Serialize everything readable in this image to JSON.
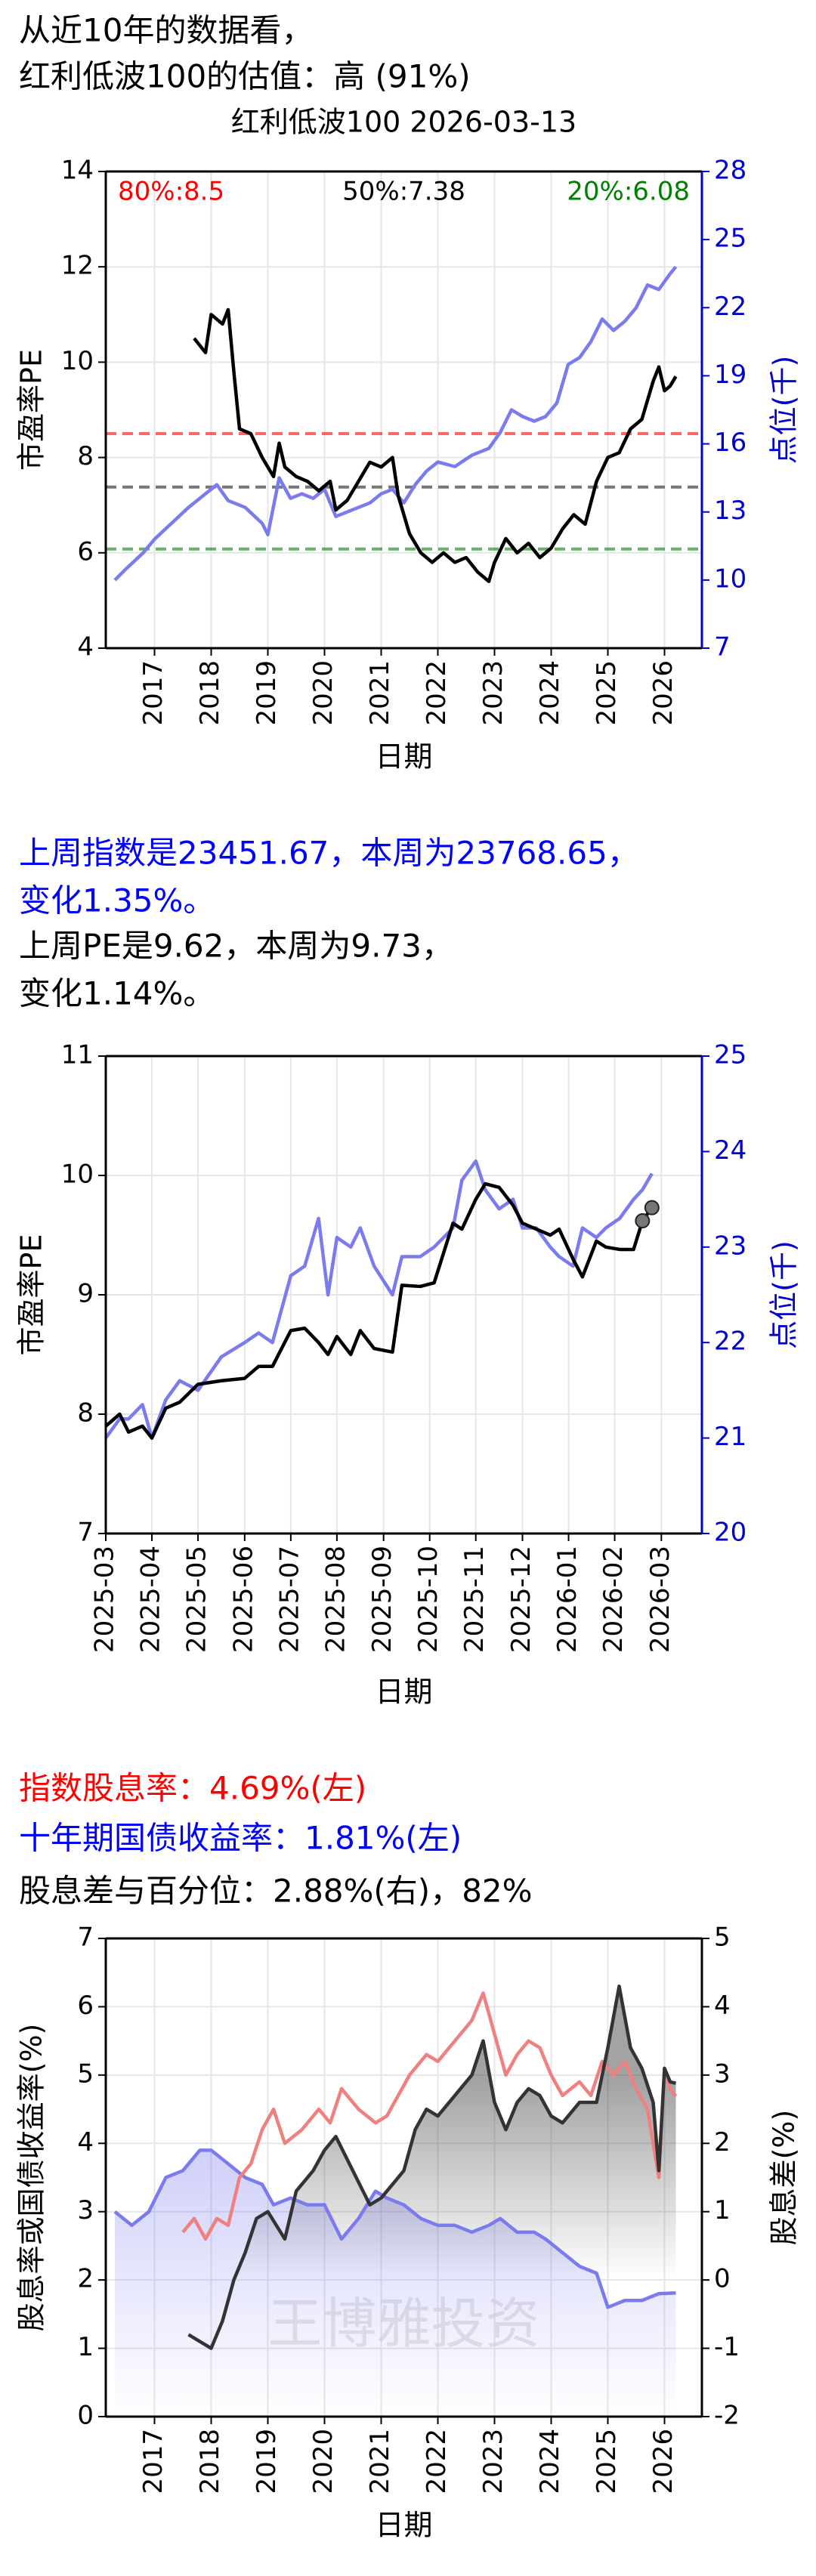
{
  "header": {
    "lines": [
      "从近10年的数据看，",
      "红利低波100的估值：高 (91%)"
    ]
  },
  "paragraphs": [
    {
      "text": "上周指数是23451.67，本周为23768.65，",
      "color": "#0000ff"
    },
    {
      "text": "变化1.35%。",
      "color": "#0000ff"
    },
    {
      "text": "上周PE是9.62，本周为9.73，",
      "color": "#000000"
    },
    {
      "text": "变化1.14%。",
      "color": "#000000"
    },
    {
      "text": "指数股息率：4.69%(左)",
      "color": "#ff0000"
    },
    {
      "text": "十年期国债收益率：1.81%(左)",
      "color": "#0000ff"
    },
    {
      "text": "股息差与百分位：2.88%(右)，82%",
      "color": "#000000"
    }
  ],
  "chart_data": [
    {
      "type": "line",
      "title": "红利低波100 2026-03-13",
      "xlabel": "日期",
      "ylabel": "市盈率PE",
      "y2label": "点位(千)",
      "y2color": "#0000cc",
      "grid": true,
      "xlim": [
        2016.14,
        2026.66
      ],
      "xticks": [
        2017,
        2018,
        2019,
        2020,
        2021,
        2022,
        2023,
        2024,
        2025,
        2026
      ],
      "ylim": [
        4,
        14
      ],
      "yticks": [
        4,
        6,
        8,
        10,
        12,
        14
      ],
      "y2lim": [
        7,
        28
      ],
      "y2ticks": [
        7,
        10,
        13,
        16,
        19,
        22,
        25,
        28
      ],
      "annotations": [
        {
          "text": "80%:8.5",
          "value": 8.5,
          "color": "#ff0000"
        },
        {
          "text": "50%:7.38",
          "value": 7.38,
          "color": "#000000"
        },
        {
          "text": "20%:6.08",
          "value": 6.08,
          "color": "#008000"
        }
      ],
      "series": [
        {
          "color": "#7b7bf0",
          "axis": "y2",
          "x": [
            2016.3,
            2016.5,
            2016.8,
            2017.0,
            2017.3,
            2017.6,
            2017.9,
            2018.1,
            2018.3,
            2018.6,
            2018.9,
            2019.0,
            2019.2,
            2019.4,
            2019.6,
            2019.8,
            2020.0,
            2020.2,
            2020.5,
            2020.8,
            2021.0,
            2021.2,
            2021.4,
            2021.6,
            2021.8,
            2022.0,
            2022.3,
            2022.6,
            2022.9,
            2023.1,
            2023.3,
            2023.5,
            2023.7,
            2023.9,
            2024.1,
            2024.3,
            2024.5,
            2024.7,
            2024.9,
            2025.1,
            2025.3,
            2025.5,
            2025.7,
            2025.9,
            2026.1,
            2026.2
          ],
          "values": [
            10.0,
            10.5,
            11.2,
            11.8,
            12.5,
            13.2,
            13.8,
            14.2,
            13.5,
            13.2,
            12.5,
            12.0,
            14.5,
            13.6,
            13.8,
            13.6,
            14.0,
            12.8,
            13.1,
            13.4,
            13.8,
            14.0,
            13.4,
            14.2,
            14.8,
            15.2,
            15.0,
            15.5,
            15.8,
            16.5,
            17.5,
            17.2,
            17.0,
            17.2,
            17.8,
            19.5,
            19.8,
            20.5,
            21.5,
            21.0,
            21.4,
            22.0,
            23.0,
            22.8,
            23.5,
            23.8
          ]
        },
        {
          "color": "#000000",
          "axis": "y",
          "x": [
            2017.7,
            2017.9,
            2018.0,
            2018.2,
            2018.3,
            2018.4,
            2018.5,
            2018.7,
            2018.9,
            2019.1,
            2019.2,
            2019.3,
            2019.5,
            2019.7,
            2019.9,
            2020.1,
            2020.2,
            2020.4,
            2020.6,
            2020.8,
            2021.0,
            2021.2,
            2021.3,
            2021.5,
            2021.7,
            2021.9,
            2022.1,
            2022.3,
            2022.5,
            2022.7,
            2022.9,
            2023.0,
            2023.2,
            2023.4,
            2023.6,
            2023.8,
            2024.0,
            2024.2,
            2024.4,
            2024.6,
            2024.8,
            2025.0,
            2025.2,
            2025.4,
            2025.6,
            2025.8,
            2025.9,
            2026.0,
            2026.1,
            2026.2
          ],
          "values": [
            10.5,
            10.2,
            11,
            10.8,
            11.1,
            9.8,
            8.6,
            8.5,
            8.0,
            7.6,
            8.3,
            7.8,
            7.6,
            7.5,
            7.3,
            7.5,
            6.9,
            7.1,
            7.5,
            7.9,
            7.8,
            8.0,
            7.2,
            6.4,
            6.0,
            5.8,
            6.0,
            5.8,
            5.9,
            5.6,
            5.4,
            5.8,
            6.3,
            6.0,
            6.2,
            5.9,
            6.1,
            6.5,
            6.8,
            6.6,
            7.5,
            8.0,
            8.1,
            8.6,
            8.8,
            9.6,
            9.9,
            9.4,
            9.5,
            9.7
          ]
        }
      ]
    },
    {
      "type": "line",
      "xlabel": "日期",
      "ylabel": "市盈率PE",
      "y2label": "点位(千)",
      "y2color": "#0000cc",
      "grid": true,
      "xlim": [
        2025.167,
        2026.24
      ],
      "xticks": [
        {
          "value": 2025.167,
          "label": "2025-03"
        },
        {
          "value": 2025.25,
          "label": "2025-04"
        },
        {
          "value": 2025.333,
          "label": "2025-05"
        },
        {
          "value": 2025.417,
          "label": "2025-06"
        },
        {
          "value": 2025.5,
          "label": "2025-07"
        },
        {
          "value": 2025.583,
          "label": "2025-08"
        },
        {
          "value": 2025.667,
          "label": "2025-09"
        },
        {
          "value": 2025.75,
          "label": "2025-10"
        },
        {
          "value": 2025.833,
          "label": "2025-11"
        },
        {
          "value": 2025.917,
          "label": "2025-12"
        },
        {
          "value": 2026.0,
          "label": "2026-01"
        },
        {
          "value": 2026.083,
          "label": "2026-02"
        },
        {
          "value": 2026.167,
          "label": "2026-03"
        }
      ],
      "ylim": [
        7,
        11
      ],
      "yticks": [
        7,
        8,
        9,
        10,
        11
      ],
      "y2lim": [
        20,
        25
      ],
      "y2ticks": [
        20,
        21,
        22,
        23,
        24,
        25
      ],
      "x": [
        2025.167,
        2025.192,
        2025.208,
        2025.233,
        2025.25,
        2025.275,
        2025.3,
        2025.333,
        2025.375,
        2025.417,
        2025.442,
        2025.467,
        2025.5,
        2025.525,
        2025.55,
        2025.567,
        2025.583,
        2025.608,
        2025.625,
        2025.65,
        2025.683,
        2025.7,
        2025.733,
        2025.758,
        2025.792,
        2025.808,
        2025.833,
        2025.85,
        2025.875,
        2025.9,
        2025.917,
        2025.942,
        2025.967,
        2025.983,
        2026.008,
        2026.025,
        2026.05,
        2026.067,
        2026.092,
        2026.117,
        2026.133,
        2026.15
      ],
      "series": [
        {
          "color": "#7b7bf0",
          "axis": "y2",
          "values": [
            21.0,
            21.2,
            21.2,
            21.35,
            21.0,
            21.4,
            21.6,
            21.5,
            21.85,
            22.0,
            22.1,
            22.0,
            22.7,
            22.8,
            23.3,
            22.5,
            23.1,
            23.0,
            23.2,
            22.8,
            22.5,
            22.9,
            22.9,
            23.0,
            23.2,
            23.7,
            23.9,
            23.6,
            23.4,
            23.5,
            23.2,
            23.2,
            23.0,
            22.9,
            22.8,
            23.2,
            23.1,
            23.2,
            23.3,
            23.5,
            23.6,
            23.77
          ]
        },
        {
          "color": "#000000",
          "axis": "y",
          "values": [
            7.9,
            8.0,
            7.85,
            7.9,
            7.8,
            8.05,
            8.1,
            8.25,
            8.28,
            8.3,
            8.4,
            8.4,
            8.7,
            8.72,
            8.6,
            8.5,
            8.65,
            8.5,
            8.7,
            8.55,
            8.52,
            9.08,
            9.07,
            9.1,
            9.6,
            9.55,
            9.8,
            9.93,
            9.9,
            9.75,
            9.6,
            9.55,
            9.5,
            9.55,
            9.3,
            9.15,
            9.45,
            9.4,
            9.38,
            9.38,
            9.62,
            9.73
          ]
        }
      ]
    },
    {
      "type": "line",
      "xlabel": "日期",
      "ylabel": "股息率或国债收益率(%)",
      "y2label": "股息差(%)",
      "y2color": "#000000",
      "grid": true,
      "watermark": "王博雅投资",
      "xlim": [
        2016.14,
        2026.66
      ],
      "xticks": [
        2017,
        2018,
        2019,
        2020,
        2021,
        2022,
        2023,
        2024,
        2025,
        2026
      ],
      "ylim": [
        0,
        7
      ],
      "yticks": [
        0,
        1,
        2,
        3,
        4,
        5,
        6,
        7
      ],
      "y2lim": [
        -2,
        5
      ],
      "y2ticks": [
        -2,
        -1,
        0,
        1,
        2,
        3,
        4,
        5
      ],
      "series": [
        {
          "color": "#7b7bf0",
          "axis": "y",
          "fill": true,
          "x": [
            2016.3,
            2016.6,
            2016.9,
            2017.2,
            2017.5,
            2017.8,
            2018.0,
            2018.3,
            2018.6,
            2018.9,
            2019.1,
            2019.4,
            2019.7,
            2020.0,
            2020.3,
            2020.6,
            2020.9,
            2021.1,
            2021.4,
            2021.7,
            2022.0,
            2022.3,
            2022.6,
            2022.9,
            2023.1,
            2023.4,
            2023.7,
            2023.9,
            2024.2,
            2024.5,
            2024.8,
            2025.0,
            2025.3,
            2025.6,
            2025.9,
            2026.2
          ],
          "values": [
            3.0,
            2.8,
            3.0,
            3.5,
            3.6,
            3.9,
            3.9,
            3.7,
            3.5,
            3.4,
            3.1,
            3.2,
            3.1,
            3.1,
            2.6,
            2.9,
            3.3,
            3.2,
            3.1,
            2.9,
            2.8,
            2.8,
            2.7,
            2.8,
            2.9,
            2.7,
            2.7,
            2.6,
            2.4,
            2.2,
            2.1,
            1.6,
            1.7,
            1.7,
            1.8,
            1.81
          ]
        },
        {
          "color": "#f08080",
          "axis": "y",
          "x": [
            2017.5,
            2017.7,
            2017.9,
            2018.1,
            2018.3,
            2018.5,
            2018.7,
            2018.9,
            2019.1,
            2019.3,
            2019.6,
            2019.9,
            2020.1,
            2020.3,
            2020.6,
            2020.9,
            2021.1,
            2021.3,
            2021.5,
            2021.8,
            2022.0,
            2022.3,
            2022.6,
            2022.8,
            2023.0,
            2023.2,
            2023.4,
            2023.6,
            2023.8,
            2024.0,
            2024.2,
            2024.5,
            2024.7,
            2024.9,
            2025.1,
            2025.3,
            2025.5,
            2025.7,
            2025.9,
            2026.0,
            2026.1,
            2026.2
          ],
          "values": [
            2.7,
            2.9,
            2.6,
            2.9,
            2.8,
            3.5,
            3.7,
            4.2,
            4.5,
            4.0,
            4.2,
            4.5,
            4.3,
            4.8,
            4.5,
            4.3,
            4.4,
            4.7,
            5.0,
            5.3,
            5.2,
            5.5,
            5.8,
            6.2,
            5.6,
            5.0,
            5.3,
            5.5,
            5.4,
            5.0,
            4.7,
            4.9,
            4.7,
            5.2,
            5.0,
            5.2,
            4.8,
            4.5,
            3.5,
            5.1,
            4.8,
            4.69
          ]
        },
        {
          "color": "#333333",
          "axis": "y2",
          "fill": true,
          "x": [
            2017.6,
            2017.8,
            2018.0,
            2018.2,
            2018.4,
            2018.6,
            2018.8,
            2019.0,
            2019.3,
            2019.5,
            2019.8,
            2020.0,
            2020.2,
            2020.5,
            2020.8,
            2021.0,
            2021.2,
            2021.4,
            2021.6,
            2021.8,
            2022.0,
            2022.3,
            2022.6,
            2022.8,
            2023.0,
            2023.2,
            2023.4,
            2023.6,
            2023.8,
            2024.0,
            2024.2,
            2024.5,
            2024.8,
            2025.0,
            2025.2,
            2025.4,
            2025.6,
            2025.8,
            2025.9,
            2026.0,
            2026.1,
            2026.2
          ],
          "values": [
            -0.8,
            -0.9,
            -1.0,
            -0.6,
            0.0,
            0.4,
            0.9,
            1.0,
            0.6,
            1.3,
            1.6,
            1.9,
            2.1,
            1.6,
            1.1,
            1.2,
            1.4,
            1.6,
            2.2,
            2.5,
            2.4,
            2.7,
            3.0,
            3.5,
            2.6,
            2.2,
            2.6,
            2.8,
            2.7,
            2.4,
            2.3,
            2.6,
            2.6,
            3.4,
            4.3,
            3.4,
            3.1,
            2.6,
            1.6,
            3.1,
            2.9,
            2.88
          ]
        }
      ]
    }
  ]
}
